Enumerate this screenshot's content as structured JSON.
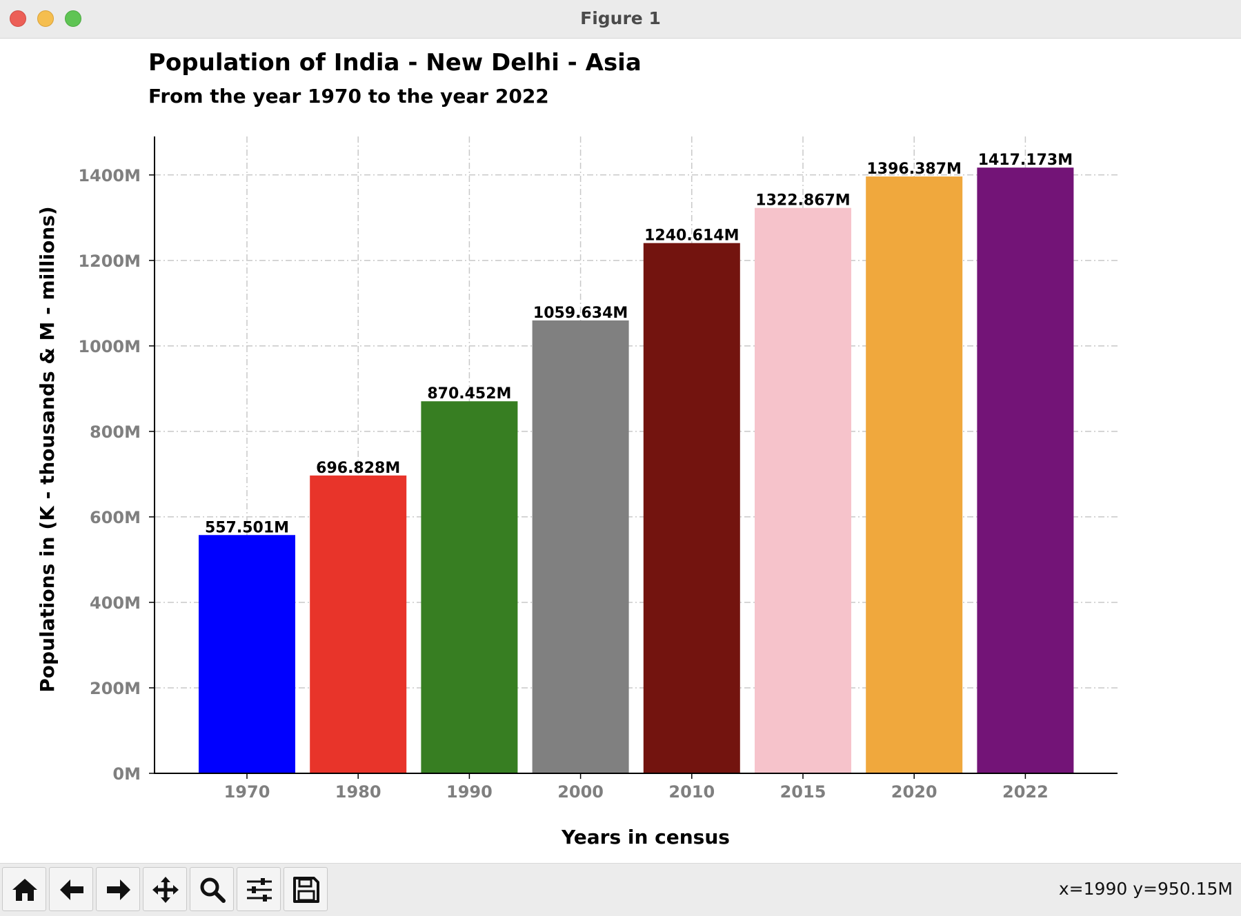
{
  "window": {
    "title": "Figure 1"
  },
  "chart_data": {
    "type": "bar",
    "title": "Population of India - New Delhi - Asia",
    "subtitle": "From the year 1970 to the year 2022",
    "xlabel": "Years in census",
    "ylabel": "Populations in (K - thousands & M - millions)",
    "categories": [
      "1970",
      "1980",
      "1990",
      "2000",
      "2010",
      "2015",
      "2020",
      "2022"
    ],
    "values": [
      557.501,
      696.828,
      870.452,
      1059.634,
      1240.614,
      1322.867,
      1396.387,
      1417.173
    ],
    "value_labels": [
      "557.501M",
      "696.828M",
      "870.452M",
      "1059.634M",
      "1240.614M",
      "1322.867M",
      "1396.387M",
      "1417.173M"
    ],
    "colors": [
      "#0000ff",
      "#e8342a",
      "#377e22",
      "#808080",
      "#73140f",
      "#f6c3cb",
      "#f0a83d",
      "#731477"
    ],
    "ylim": [
      0,
      1490
    ],
    "yticks": [
      0,
      200,
      400,
      600,
      800,
      1000,
      1200,
      1400
    ],
    "ytick_labels": [
      "0M",
      "200M",
      "400M",
      "600M",
      "800M",
      "1000M",
      "1200M",
      "1400M"
    ],
    "grid": true,
    "legend": "none"
  },
  "toolbar": {
    "tools": [
      {
        "name": "home-icon"
      },
      {
        "name": "back-arrow-icon"
      },
      {
        "name": "forward-arrow-icon"
      },
      {
        "name": "pan-icon"
      },
      {
        "name": "zoom-icon"
      },
      {
        "name": "configure-subplots-icon"
      },
      {
        "name": "save-icon"
      }
    ],
    "coordinates": "x=1990 y=950.15M"
  }
}
